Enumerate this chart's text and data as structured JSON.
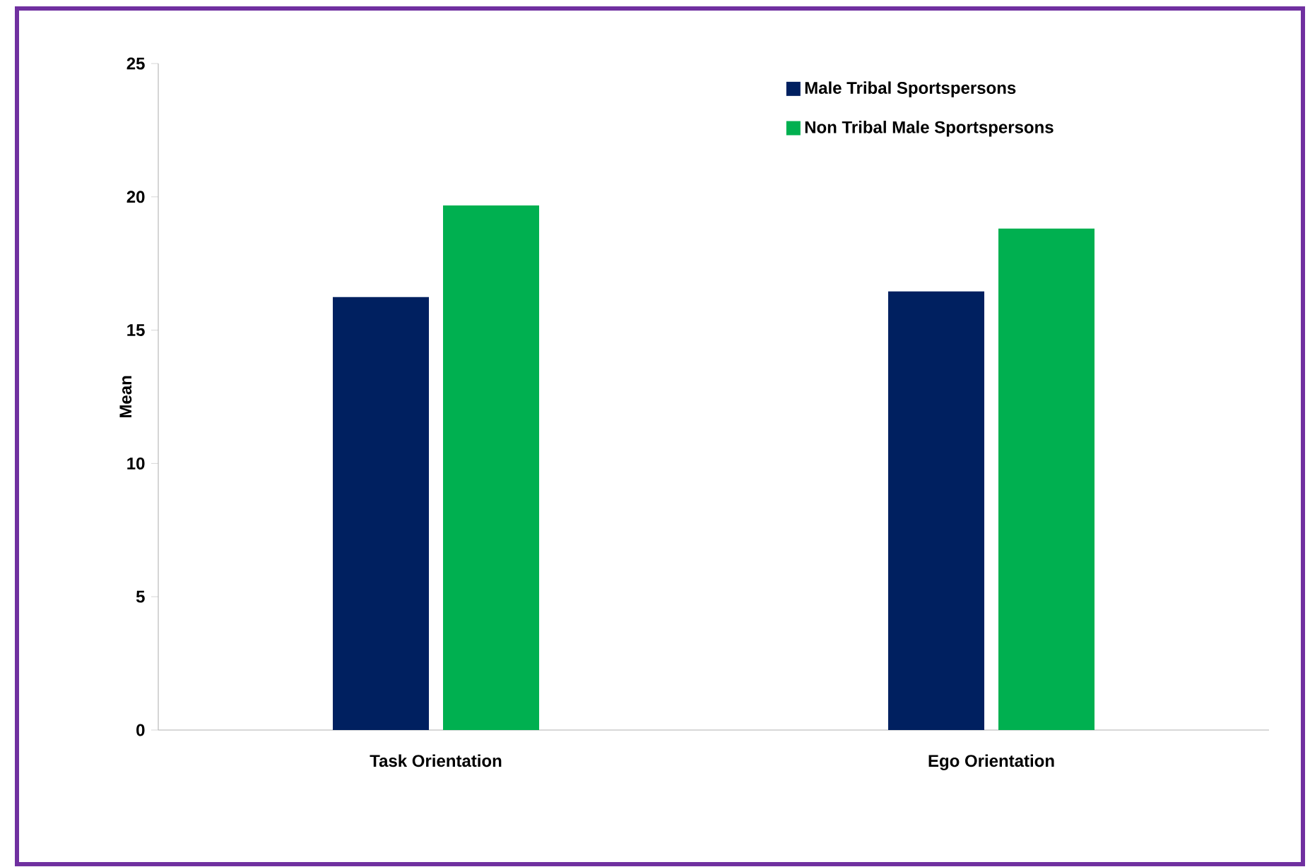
{
  "chart_data": {
    "type": "bar",
    "ylabel": "Mean",
    "categories": [
      "Task Orientation",
      "Ego Orientation"
    ],
    "series": [
      {
        "name": "Male Tribal Sportspersons",
        "color": "#002060",
        "values": [
          16.24,
          16.45
        ]
      },
      {
        "name": "Non Tribal Male Sportspersons",
        "color": "#00b050",
        "values": [
          19.68,
          18.81
        ]
      }
    ],
    "ylim": [
      0,
      25
    ],
    "yticks": [
      0,
      5,
      10,
      15,
      20,
      25
    ],
    "grid": false,
    "legend": "top right"
  }
}
